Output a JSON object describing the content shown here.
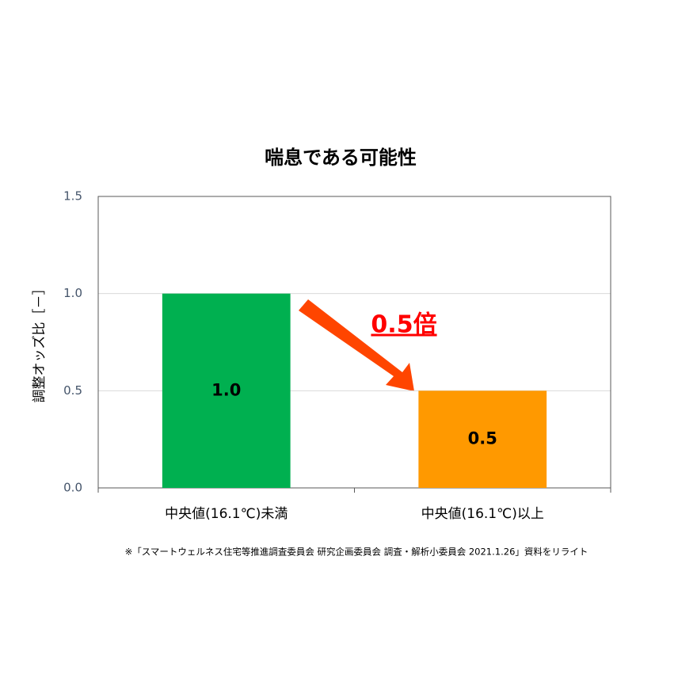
{
  "chart_data": {
    "type": "bar",
    "title": "喘息である可能性",
    "y_label": "調整オッズ比［－］",
    "categories": [
      "中央値(16.1℃)未満",
      "中央値(16.1℃)以上"
    ],
    "values": [
      1.0,
      0.5
    ],
    "value_labels": [
      "1.0",
      "0.5"
    ],
    "colors": [
      "#00b050",
      "#ff9900"
    ],
    "ylim": [
      0,
      1.5
    ],
    "yticks": [
      {
        "value": 0,
        "label": "0.0"
      },
      {
        "value": 0.5,
        "label": "0.5"
      },
      {
        "value": 1,
        "label": "1.0"
      },
      {
        "value": 1.5,
        "label": "1.5"
      }
    ],
    "grid": true,
    "annotation": "0.5倍",
    "source_note": "※「スマートウェルネス住宅等推進調査委員会 研究企画委員会 調査・解析小委員会 2021.1.26」資料をリライト"
  }
}
